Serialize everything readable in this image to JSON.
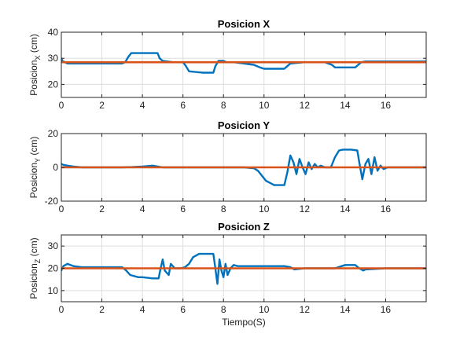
{
  "chart_data": [
    {
      "type": "line",
      "title": "Posicion X",
      "ylabel": "Posicion",
      "ylabel_sub": "X",
      "ylabel_unit": " (cm)",
      "xlabel": "",
      "xlim": [
        0,
        18
      ],
      "ylim": [
        15,
        40
      ],
      "xticks": [
        0,
        2,
        4,
        6,
        8,
        10,
        12,
        14,
        16
      ],
      "yticks": [
        20,
        30,
        40
      ],
      "grid": true,
      "series": [
        {
          "color": "#0072BD",
          "x": [
            0,
            0.05,
            0.3,
            1,
            2,
            3,
            3.15,
            3.3,
            3.45,
            4,
            4.75,
            4.85,
            5,
            5.5,
            6,
            6.15,
            6.3,
            7,
            7.5,
            7.6,
            7.75,
            8,
            8.15,
            8.5,
            9,
            9.5,
            9.8,
            10,
            10.5,
            11,
            11.15,
            11.3,
            12,
            13,
            13.35,
            13.5,
            14,
            14.5,
            14.65,
            14.8,
            15,
            16,
            17,
            18
          ],
          "y": [
            30,
            29,
            28,
            28,
            28,
            28,
            28.5,
            30.5,
            32,
            32,
            32,
            30,
            29,
            28.5,
            28.5,
            27,
            25,
            24.5,
            24.5,
            27,
            29,
            29,
            28.5,
            28.5,
            28,
            27.5,
            26.5,
            26,
            26,
            26,
            27,
            28,
            28.5,
            28.5,
            27.5,
            26.5,
            26.5,
            26.5,
            27.5,
            28.5,
            28.8,
            28.8,
            28.8,
            28.8
          ]
        },
        {
          "color": "#D95319",
          "x": [
            0,
            18
          ],
          "y": [
            28.5,
            28.5
          ]
        }
      ]
    },
    {
      "type": "line",
      "title": "Posicion Y",
      "ylabel": "Posicion",
      "ylabel_sub": "Y",
      "ylabel_unit": " (cm)",
      "xlabel": "",
      "xlim": [
        0,
        18
      ],
      "ylim": [
        -20,
        20
      ],
      "xticks": [
        0,
        2,
        4,
        6,
        8,
        10,
        12,
        14,
        16
      ],
      "yticks": [
        -20,
        0,
        20
      ],
      "grid": true,
      "series": [
        {
          "color": "#0072BD",
          "x": [
            0,
            0.1,
            0.3,
            0.6,
            1,
            2,
            3,
            3.5,
            4,
            4.5,
            5,
            6,
            7,
            8,
            9,
            9.5,
            9.7,
            9.9,
            10.1,
            10.5,
            11,
            11.15,
            11.3,
            11.45,
            11.6,
            11.75,
            11.9,
            12.05,
            12.2,
            12.35,
            12.5,
            12.65,
            12.8,
            13,
            13.3,
            13.5,
            13.7,
            13.9,
            14.3,
            14.6,
            14.7,
            14.85,
            15,
            15.15,
            15.3,
            15.45,
            15.6,
            15.75,
            15.9,
            16.1,
            17,
            18
          ],
          "y": [
            2,
            1.5,
            1,
            0.5,
            0,
            0,
            0,
            0.2,
            0.5,
            1,
            0,
            0,
            0,
            0,
            0,
            -0.5,
            -2,
            -5,
            -8,
            -10.5,
            -10.5,
            -3,
            7,
            3,
            -4,
            5,
            0,
            -4,
            3,
            -1,
            2,
            0,
            1,
            0,
            0,
            6,
            10,
            10.5,
            10.5,
            10,
            3,
            -7,
            2,
            5,
            -4,
            6,
            -2,
            1,
            -1,
            0,
            0,
            0
          ]
        },
        {
          "color": "#D95319",
          "x": [
            0,
            18
          ],
          "y": [
            0,
            0
          ]
        }
      ]
    },
    {
      "type": "line",
      "title": "Posicion Z",
      "ylabel": "Posicion",
      "ylabel_sub": "Z",
      "ylabel_unit": " (cm)",
      "xlabel": "Tiempo(S)",
      "xlim": [
        0,
        18
      ],
      "ylim": [
        5,
        35
      ],
      "xticks": [
        0,
        2,
        4,
        6,
        8,
        10,
        12,
        14,
        16
      ],
      "yticks": [
        10,
        20,
        30
      ],
      "grid": true,
      "series": [
        {
          "color": "#0072BD",
          "x": [
            0,
            0.1,
            0.3,
            0.6,
            1,
            2,
            3,
            3.2,
            3.4,
            3.8,
            4,
            4.5,
            4.8,
            4.9,
            5,
            5.1,
            5.3,
            5.4,
            5.6,
            5.9,
            6.1,
            6.3,
            6.5,
            6.8,
            7,
            7.5,
            7.6,
            7.7,
            7.8,
            7.9,
            8,
            8.1,
            8.2,
            8.35,
            8.5,
            8.7,
            9,
            10,
            11,
            11.3,
            11.5,
            12,
            13,
            13.5,
            14,
            14.5,
            14.7,
            14.9,
            15,
            16,
            17,
            18
          ],
          "y": [
            19,
            21,
            22,
            21,
            20.5,
            20.5,
            20.5,
            19,
            17,
            16,
            16,
            15.5,
            15.5,
            20,
            24,
            19,
            17,
            22,
            20,
            20,
            20.5,
            22,
            25,
            26.5,
            26.5,
            26.5,
            20,
            13,
            24,
            19,
            16,
            22,
            17,
            20,
            21.5,
            21,
            21,
            21,
            21,
            20.5,
            19.5,
            20,
            20,
            20,
            21.5,
            21.5,
            20,
            19,
            19.5,
            20,
            20,
            20
          ]
        },
        {
          "color": "#D95319",
          "x": [
            0,
            18
          ],
          "y": [
            20,
            20
          ]
        }
      ]
    }
  ]
}
